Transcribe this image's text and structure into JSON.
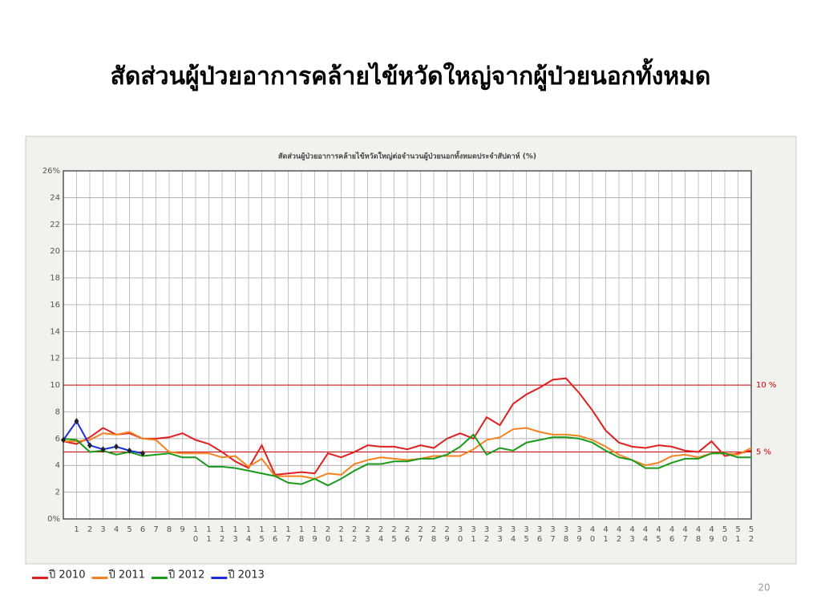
{
  "slide_title": "สัดส่วนผู้ป่วยอาการคล้ายไข้หวัดใหญ่จากผู้ป่วยนอกทั้งหมด",
  "page_number": "20",
  "chart_data": {
    "type": "line",
    "title": "สัดส่วนผู้ป่วยอาการคล้ายไข้หวัดใหญ่ต่อจำนวนผู้ป่วยนอกทั้งหมดประจำสัปดาห์ (%)",
    "categories": [
      null,
      "1",
      "2",
      "3",
      "4",
      "5",
      "6",
      "7",
      "8",
      "9",
      "10",
      "11",
      "12",
      "13",
      "14",
      "15",
      "16",
      "17",
      "18",
      "19",
      "20",
      "21",
      "22",
      "23",
      "24",
      "25",
      "26",
      "27",
      "28",
      "29",
      "30",
      "31",
      "32",
      "33",
      "34",
      "35",
      "36",
      "37",
      "38",
      "39",
      "40",
      "41",
      "42",
      "43",
      "44",
      "45",
      "46",
      "47",
      "48",
      "49",
      "50",
      "51",
      "52"
    ],
    "ylim": [
      0,
      26
    ],
    "yticks": [
      {
        "value": 0,
        "label": "0%"
      },
      2,
      4,
      6,
      8,
      10,
      12,
      14,
      16,
      18,
      20,
      22,
      24,
      {
        "value": 26,
        "label": "26%"
      }
    ],
    "grid": true,
    "legend": "bottom-left",
    "reference_lines": [
      {
        "value": 10,
        "label": "10 %",
        "color": "#cc0000"
      },
      {
        "value": 5,
        "label": "5 %",
        "color": "#cc0000"
      }
    ],
    "series": [
      {
        "name": "ปี 2010",
        "color": "#e02020",
        "values": [
          5.8,
          5.6,
          6.1,
          6.8,
          6.3,
          6.4,
          6.0,
          6.0,
          6.1,
          6.4,
          5.9,
          5.6,
          5.0,
          4.3,
          3.8,
          5.5,
          3.3,
          3.4,
          3.5,
          3.4,
          4.9,
          4.6,
          5.0,
          5.5,
          5.4,
          5.4,
          5.2,
          5.5,
          5.3,
          6.0,
          6.4,
          6.0,
          7.6,
          7.0,
          8.6,
          9.3,
          9.8,
          10.4,
          10.5,
          9.4,
          8.1,
          6.6,
          5.7,
          5.4,
          5.3,
          5.5,
          5.4,
          5.1,
          5.0,
          5.8,
          4.7,
          4.9,
          5.1
        ]
      },
      {
        "name": "ปี 2011",
        "color": "#f58220",
        "values": [
          5.8,
          5.8,
          5.9,
          6.4,
          6.3,
          6.5,
          6.0,
          5.9,
          5.0,
          4.9,
          4.9,
          4.9,
          4.6,
          4.7,
          3.9,
          4.5,
          3.2,
          3.2,
          3.2,
          3.0,
          3.4,
          3.3,
          4.1,
          4.4,
          4.6,
          4.5,
          4.4,
          4.5,
          4.7,
          4.7,
          4.7,
          5.2,
          5.9,
          6.1,
          6.7,
          6.8,
          6.5,
          6.3,
          6.3,
          6.2,
          5.9,
          5.4,
          4.8,
          4.4,
          4.0,
          4.2,
          4.7,
          4.8,
          4.6,
          4.9,
          4.9,
          4.8,
          5.3
        ]
      },
      {
        "name": "ปี 2012",
        "color": "#1a9a1a",
        "values": [
          6.0,
          5.9,
          5.0,
          5.1,
          4.8,
          5.0,
          4.7,
          4.8,
          4.9,
          4.6,
          4.6,
          3.9,
          3.9,
          3.8,
          3.6,
          3.4,
          3.2,
          2.7,
          2.6,
          3.0,
          2.5,
          3.0,
          3.6,
          4.1,
          4.1,
          4.3,
          4.3,
          4.5,
          4.5,
          4.8,
          5.4,
          6.3,
          4.8,
          5.3,
          5.1,
          5.7,
          5.9,
          6.1,
          6.1,
          6.0,
          5.7,
          5.1,
          4.6,
          4.4,
          3.8,
          3.8,
          4.2,
          4.5,
          4.5,
          4.9,
          4.9,
          4.6,
          4.6
        ]
      },
      {
        "name": "ปี 2013",
        "color": "#1a2ee0",
        "markers": true,
        "values": [
          5.9,
          7.3,
          5.5,
          5.2,
          5.4,
          5.1,
          4.9,
          null,
          null,
          null,
          null,
          null,
          null,
          null,
          null,
          null,
          null,
          null,
          null,
          null,
          null,
          null,
          null,
          null,
          null,
          null,
          null,
          null,
          null,
          null,
          null,
          null,
          null,
          null,
          null,
          null,
          null,
          null,
          null,
          null,
          null,
          null,
          null,
          null,
          null,
          null,
          null,
          null,
          null,
          null,
          null,
          null,
          null
        ]
      }
    ]
  }
}
